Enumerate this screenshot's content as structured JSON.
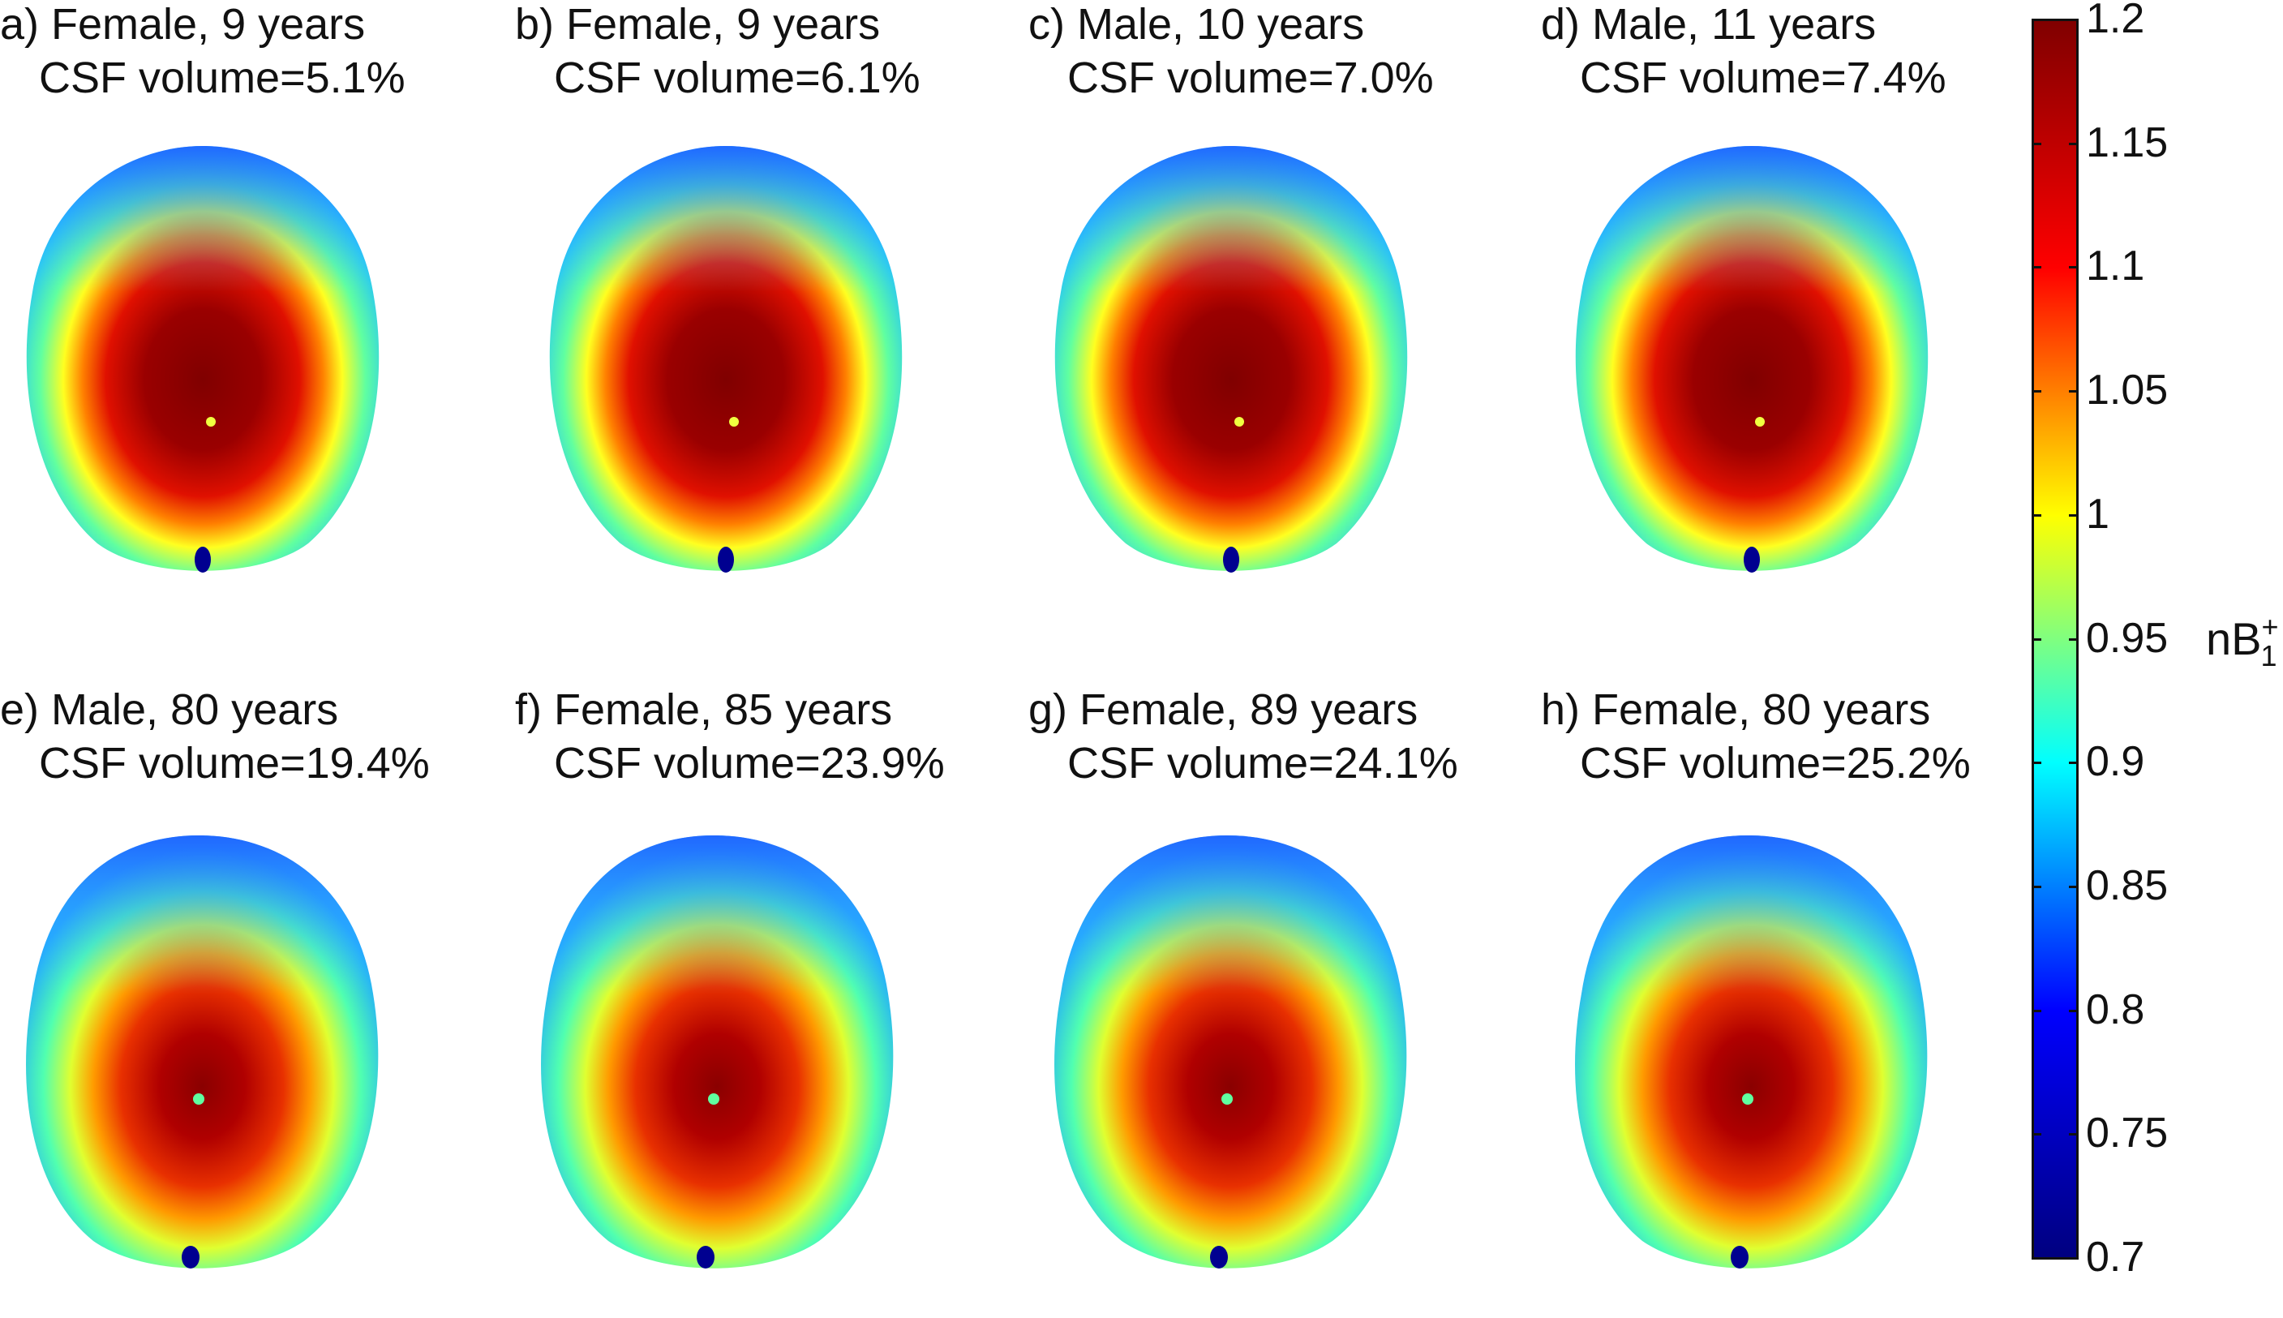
{
  "panels": [
    {
      "line1": "a) Female, 9 years",
      "line2": "CSF volume=5.1%"
    },
    {
      "line1": "b) Female, 9 years",
      "line2": "CSF volume=6.1%"
    },
    {
      "line1": "c) Male, 10 years",
      "line2": "CSF volume=7.0%"
    },
    {
      "line1": "d) Male, 11 years",
      "line2": "CSF volume=7.4%"
    },
    {
      "line1": "e) Male, 80 years",
      "line2": "CSF volume=19.4%"
    },
    {
      "line1": "f) Female, 85 years",
      "line2": "CSF volume=23.9%"
    },
    {
      "line1": "g) Female, 89 years",
      "line2": "CSF volume=24.1%"
    },
    {
      "line1": "h) Female, 80 years",
      "line2": "CSF volume=25.2%"
    }
  ],
  "colorbar": {
    "label_main": "nB",
    "label_sup": "+",
    "label_sub": "1",
    "ticks": [
      "1.2",
      "1.15",
      "1.1",
      "1.05",
      "1",
      "0.95",
      "0.9",
      "0.85",
      "0.8",
      "0.75",
      "0.7"
    ],
    "min": 0.7,
    "max": 1.2,
    "colormap": [
      "#000080",
      "#0000ff",
      "#00ffff",
      "#ffff00",
      "#ff0000",
      "#800000"
    ]
  }
}
